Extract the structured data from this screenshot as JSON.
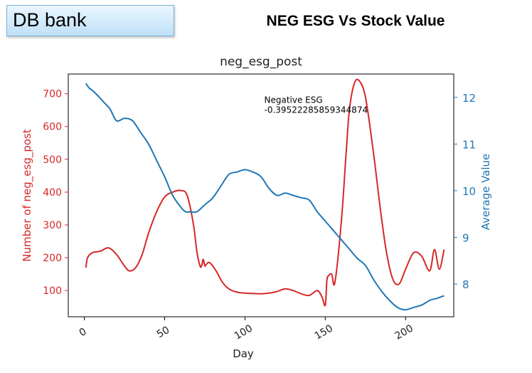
{
  "slide": {
    "bank_label": "DB bank",
    "title": "NEG ESG Vs Stock Value"
  },
  "chart_data": {
    "type": "line",
    "title": "neg_esg_post",
    "xlabel": "Day",
    "ylabel_left": "Number of neg_esg_post",
    "ylabel_right": "Average Value",
    "xlim": [
      -10,
      230
    ],
    "ylim_left": [
      20,
      760
    ],
    "ylim_right": [
      7.3,
      12.5
    ],
    "xticks": [
      0,
      50,
      100,
      150,
      200
    ],
    "yticks_left": [
      100,
      200,
      300,
      400,
      500,
      600,
      700
    ],
    "yticks_right": [
      8,
      9,
      10,
      11,
      12
    ],
    "grid": false,
    "left_color": "#d62728",
    "right_color": "#1f77b4",
    "annotation": {
      "label": "Negative ESG",
      "value": "-0.39522285859344874",
      "x": 112,
      "y_left": 672
    },
    "series": [
      {
        "name": "neg_esg_post",
        "axis": "left",
        "color": "#d62728",
        "x": [
          1,
          2,
          5,
          10,
          15,
          20,
          25,
          28,
          32,
          36,
          40,
          45,
          50,
          55,
          60,
          64,
          68,
          70,
          72,
          73,
          74,
          75,
          76,
          78,
          82,
          86,
          90,
          95,
          100,
          110,
          115,
          120,
          125,
          130,
          135,
          140,
          145,
          148,
          150,
          151,
          152,
          154,
          156,
          160,
          163,
          165,
          168,
          171,
          175,
          180,
          184,
          188,
          192,
          196,
          200,
          205,
          210,
          215,
          218,
          221,
          224
        ],
        "y": [
          170,
          200,
          215,
          220,
          230,
          210,
          175,
          160,
          170,
          210,
          275,
          340,
          385,
          400,
          405,
          390,
          300,
          220,
          175,
          175,
          195,
          175,
          180,
          185,
          160,
          125,
          105,
          95,
          92,
          90,
          92,
          97,
          105,
          100,
          90,
          85,
          100,
          80,
          55,
          130,
          145,
          150,
          125,
          310,
          520,
          650,
          730,
          740,
          690,
          520,
          360,
          220,
          135,
          120,
          165,
          215,
          205,
          160,
          225,
          165,
          225
        ]
      },
      {
        "name": "Average Value",
        "axis": "right",
        "color": "#1f77b4",
        "x": [
          1,
          3,
          5,
          8,
          12,
          16,
          20,
          25,
          30,
          35,
          40,
          45,
          50,
          55,
          60,
          63,
          66,
          70,
          75,
          80,
          85,
          90,
          95,
          100,
          105,
          110,
          115,
          120,
          125,
          130,
          135,
          140,
          145,
          150,
          155,
          160,
          165,
          170,
          175,
          180,
          185,
          190,
          195,
          200,
          205,
          210,
          215,
          220,
          224
        ],
        "y": [
          12.3,
          12.2,
          12.15,
          12.05,
          11.9,
          11.75,
          11.5,
          11.55,
          11.5,
          11.25,
          11.0,
          10.65,
          10.3,
          9.9,
          9.65,
          9.55,
          9.55,
          9.55,
          9.7,
          9.85,
          10.1,
          10.35,
          10.4,
          10.45,
          10.4,
          10.3,
          10.05,
          9.9,
          9.95,
          9.9,
          9.85,
          9.8,
          9.55,
          9.35,
          9.15,
          8.95,
          8.75,
          8.55,
          8.4,
          8.1,
          7.85,
          7.65,
          7.5,
          7.45,
          7.5,
          7.55,
          7.65,
          7.7,
          7.75
        ]
      }
    ]
  }
}
